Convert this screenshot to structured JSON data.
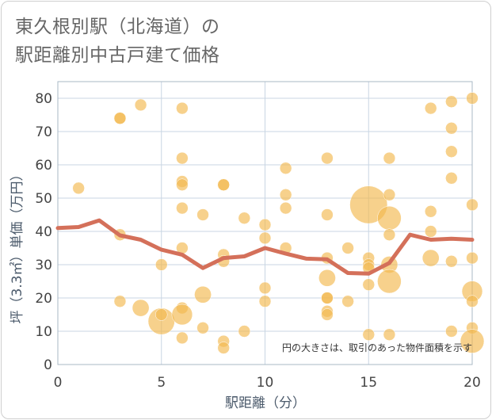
{
  "title_lines": [
    "東久根別駅（北海道）の",
    "駅距離別中古戸建て価格"
  ],
  "chart_data": {
    "type": "scatter",
    "xlabel": "駅距離（分）",
    "ylabel": "坪（3.3㎡）単価（万円）",
    "xlim": [
      0,
      20
    ],
    "ylim": [
      0,
      85
    ],
    "xticks": [
      0,
      5,
      10,
      15,
      20
    ],
    "yticks": [
      0,
      10,
      20,
      30,
      40,
      50,
      60,
      70,
      80
    ],
    "grid": true,
    "note": "円の大きさは、取引のあった物件面積を示す",
    "colors": {
      "bubble": "#f3b84e",
      "line": "#d4705a",
      "grid": "#c9d6e3"
    },
    "bubbles": [
      {
        "x": 1,
        "y": 53,
        "s": 1
      },
      {
        "x": 3,
        "y": 74,
        "s": 1
      },
      {
        "x": 3,
        "y": 74,
        "s": 1
      },
      {
        "x": 3,
        "y": 39,
        "s": 1
      },
      {
        "x": 3,
        "y": 19,
        "s": 1
      },
      {
        "x": 4,
        "y": 78,
        "s": 1
      },
      {
        "x": 4,
        "y": 17,
        "s": 2
      },
      {
        "x": 5,
        "y": 30,
        "s": 1
      },
      {
        "x": 5,
        "y": 13,
        "s": 5
      },
      {
        "x": 5,
        "y": 15,
        "s": 1
      },
      {
        "x": 6,
        "y": 77,
        "s": 1
      },
      {
        "x": 6,
        "y": 62,
        "s": 1
      },
      {
        "x": 6,
        "y": 55,
        "s": 1
      },
      {
        "x": 6,
        "y": 54,
        "s": 1
      },
      {
        "x": 6,
        "y": 47,
        "s": 1
      },
      {
        "x": 6,
        "y": 35,
        "s": 1
      },
      {
        "x": 6,
        "y": 17,
        "s": 1
      },
      {
        "x": 6,
        "y": 15,
        "s": 3
      },
      {
        "x": 6,
        "y": 8,
        "s": 1
      },
      {
        "x": 7,
        "y": 45,
        "s": 1
      },
      {
        "x": 7,
        "y": 21,
        "s": 2
      },
      {
        "x": 7,
        "y": 11,
        "s": 1
      },
      {
        "x": 8,
        "y": 54,
        "s": 1
      },
      {
        "x": 8,
        "y": 54,
        "s": 1
      },
      {
        "x": 8,
        "y": 33,
        "s": 1
      },
      {
        "x": 8,
        "y": 31,
        "s": 1
      },
      {
        "x": 8,
        "y": 7,
        "s": 1
      },
      {
        "x": 8,
        "y": 5,
        "s": 1
      },
      {
        "x": 9,
        "y": 44,
        "s": 1
      },
      {
        "x": 9,
        "y": 10,
        "s": 1
      },
      {
        "x": 10,
        "y": 42,
        "s": 1
      },
      {
        "x": 10,
        "y": 38,
        "s": 1
      },
      {
        "x": 10,
        "y": 23,
        "s": 1
      },
      {
        "x": 10,
        "y": 19,
        "s": 1
      },
      {
        "x": 11,
        "y": 59,
        "s": 1
      },
      {
        "x": 11,
        "y": 51,
        "s": 1
      },
      {
        "x": 11,
        "y": 47,
        "s": 1
      },
      {
        "x": 11,
        "y": 35,
        "s": 1
      },
      {
        "x": 13,
        "y": 62,
        "s": 1
      },
      {
        "x": 13,
        "y": 45,
        "s": 1
      },
      {
        "x": 13,
        "y": 32,
        "s": 1
      },
      {
        "x": 13,
        "y": 26,
        "s": 2
      },
      {
        "x": 13,
        "y": 20,
        "s": 1
      },
      {
        "x": 13,
        "y": 20,
        "s": 1
      },
      {
        "x": 13,
        "y": 16,
        "s": 1
      },
      {
        "x": 13,
        "y": 15,
        "s": 1
      },
      {
        "x": 14,
        "y": 35,
        "s": 1
      },
      {
        "x": 14,
        "y": 19,
        "s": 1
      },
      {
        "x": 15,
        "y": 48,
        "s": 10
      },
      {
        "x": 15,
        "y": 32,
        "s": 1
      },
      {
        "x": 15,
        "y": 30,
        "s": 1
      },
      {
        "x": 15,
        "y": 29,
        "s": 1
      },
      {
        "x": 15,
        "y": 24,
        "s": 1
      },
      {
        "x": 15,
        "y": 9,
        "s": 1
      },
      {
        "x": 16,
        "y": 62,
        "s": 1
      },
      {
        "x": 16,
        "y": 51,
        "s": 1
      },
      {
        "x": 16,
        "y": 44,
        "s": 4
      },
      {
        "x": 16,
        "y": 39,
        "s": 1
      },
      {
        "x": 16,
        "y": 30,
        "s": 2
      },
      {
        "x": 16,
        "y": 25,
        "s": 4
      },
      {
        "x": 16,
        "y": 9,
        "s": 1
      },
      {
        "x": 18,
        "y": 77,
        "s": 1
      },
      {
        "x": 18,
        "y": 46,
        "s": 1
      },
      {
        "x": 18,
        "y": 40,
        "s": 1
      },
      {
        "x": 18,
        "y": 32,
        "s": 2
      },
      {
        "x": 19,
        "y": 79,
        "s": 1
      },
      {
        "x": 19,
        "y": 71,
        "s": 1
      },
      {
        "x": 19,
        "y": 64,
        "s": 1
      },
      {
        "x": 19,
        "y": 56,
        "s": 1
      },
      {
        "x": 19,
        "y": 31,
        "s": 1
      },
      {
        "x": 19,
        "y": 10,
        "s": 1
      },
      {
        "x": 20,
        "y": 80,
        "s": 1
      },
      {
        "x": 20,
        "y": 48,
        "s": 1
      },
      {
        "x": 20,
        "y": 32,
        "s": 1
      },
      {
        "x": 20,
        "y": 22,
        "s": 3
      },
      {
        "x": 20,
        "y": 19,
        "s": 1
      },
      {
        "x": 20,
        "y": 11,
        "s": 1
      },
      {
        "x": 20,
        "y": 7,
        "s": 4
      }
    ],
    "line": {
      "x": [
        0,
        1,
        2,
        3,
        4,
        5,
        6,
        7,
        8,
        9,
        10,
        11,
        12,
        13,
        14,
        15,
        16,
        17,
        18,
        19,
        20
      ],
      "y": [
        41,
        41.3,
        43.3,
        38.8,
        37.5,
        34.5,
        33,
        29,
        32,
        32.5,
        35,
        33.3,
        31.8,
        31.6,
        27.5,
        27.3,
        30.5,
        39,
        37.5,
        37.8,
        37.5
      ]
    }
  }
}
